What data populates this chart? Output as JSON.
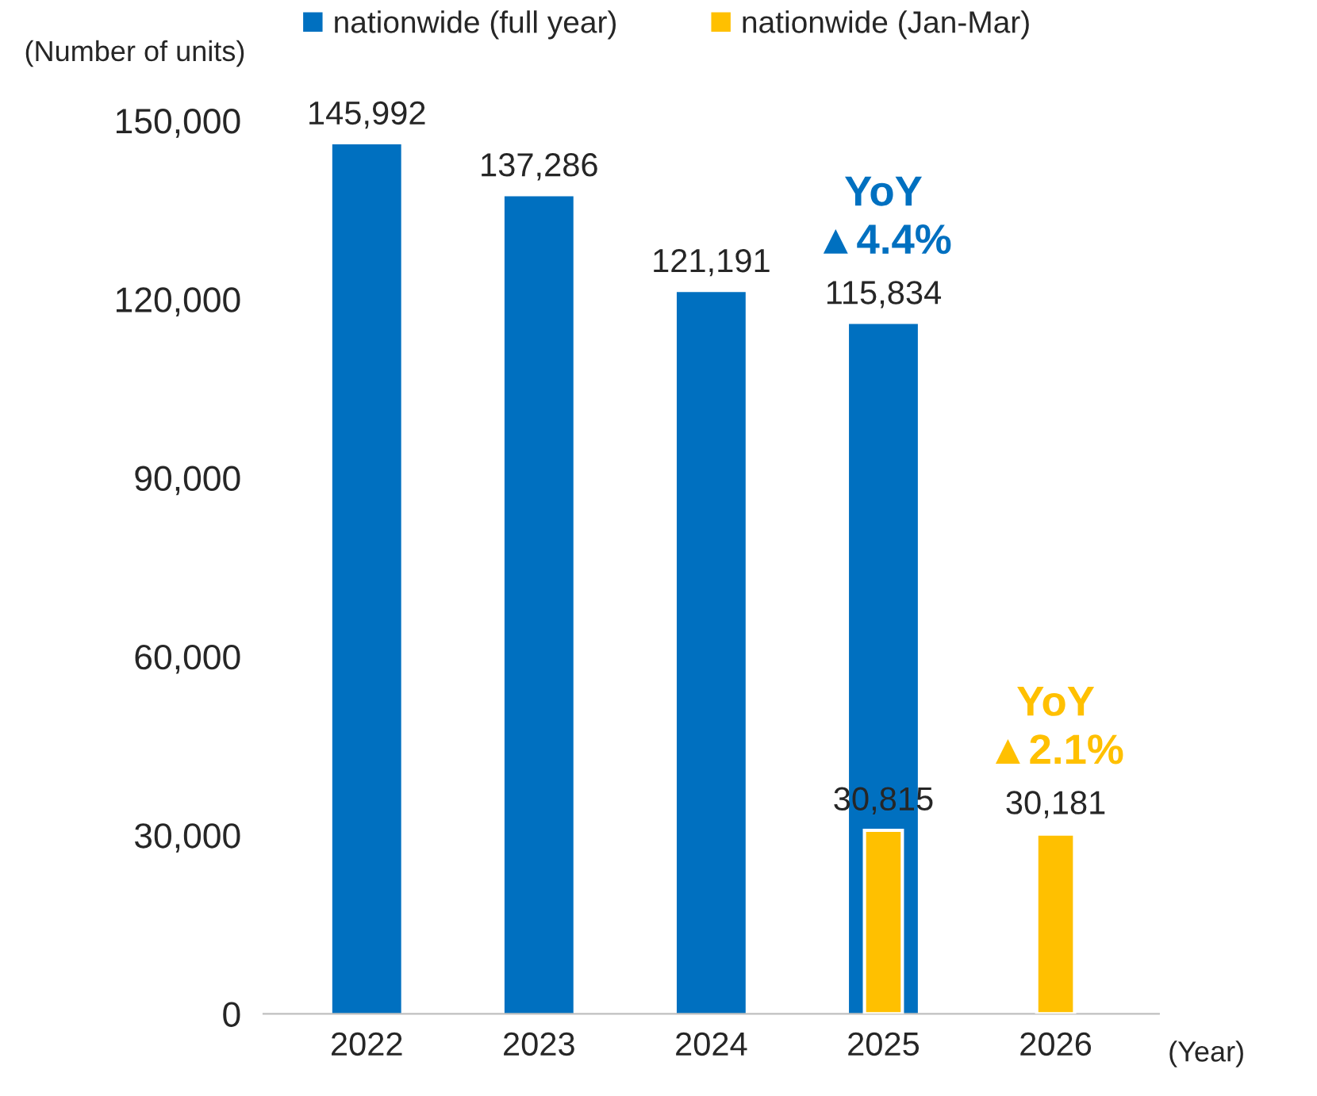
{
  "chart_data": {
    "type": "bar",
    "ylabel": "(Number of units)",
    "xlabel": "(Year)",
    "categories": [
      "2022",
      "2023",
      "2024",
      "2025",
      "2026"
    ],
    "series": [
      {
        "name": "nationwide (full year)",
        "color": "#0070c0",
        "values": [
          145992,
          137286,
          121191,
          115834,
          null
        ],
        "value_labels": [
          "145,992",
          "137,286",
          "121,191",
          "115,834",
          null
        ]
      },
      {
        "name": "nationwide (Jan-Mar)",
        "color": "#ffc000",
        "values": [
          null,
          null,
          null,
          30815,
          30181
        ],
        "value_labels": [
          null,
          null,
          null,
          "30,815",
          "30,181"
        ]
      }
    ],
    "ylim": [
      0,
      150000
    ],
    "yticks": [
      0,
      {
        "value": 30000,
        "label": "30,000"
      },
      {
        "value": 60000,
        "label": "60,000"
      },
      {
        "value": 90000,
        "label": "90,000"
      },
      {
        "value": 120000,
        "label": "120,000"
      },
      {
        "value": 150000,
        "label": "150,000"
      }
    ],
    "grid": false,
    "legend": "top",
    "annotations": [
      {
        "text": "YoY\n▲4.4%",
        "x": "2025",
        "y": 115834
      },
      {
        "text": "YoY\n▲2.1%",
        "x": "2026",
        "y": 30181
      }
    ]
  }
}
